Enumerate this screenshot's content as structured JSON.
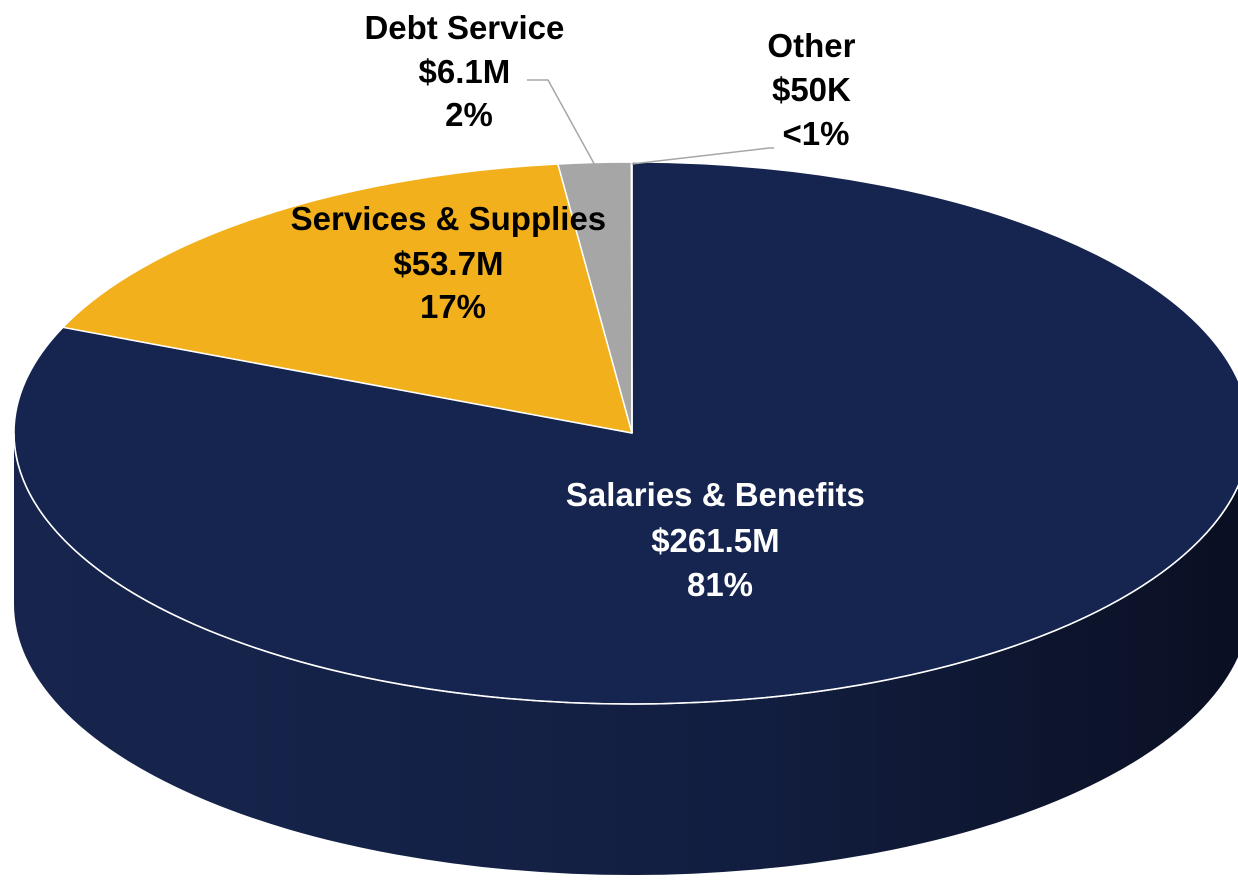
{
  "chart_data": {
    "type": "pie",
    "style": "3d",
    "title": "",
    "slices": [
      {
        "name": "Salaries & Benefits",
        "amount_label": "$261.5M",
        "value": 261.5,
        "percent_label": "81%",
        "color": "#16254F",
        "label_color": "#FFFFFF"
      },
      {
        "name": "Services & Supplies",
        "amount_label": "$53.7M",
        "value": 53.7,
        "percent_label": "17%",
        "color": "#F2B11C",
        "label_color": "#000000"
      },
      {
        "name": "Debt Service",
        "amount_label": "$6.1M",
        "value": 6.1,
        "percent_label": "2%",
        "color": "#A6A6A6",
        "label_color": "#000000"
      },
      {
        "name": "Other",
        "amount_label": "$50K",
        "value": 0.05,
        "percent_label": "<1%",
        "color": "#8C8C8C",
        "label_color": "#000000"
      }
    ]
  }
}
